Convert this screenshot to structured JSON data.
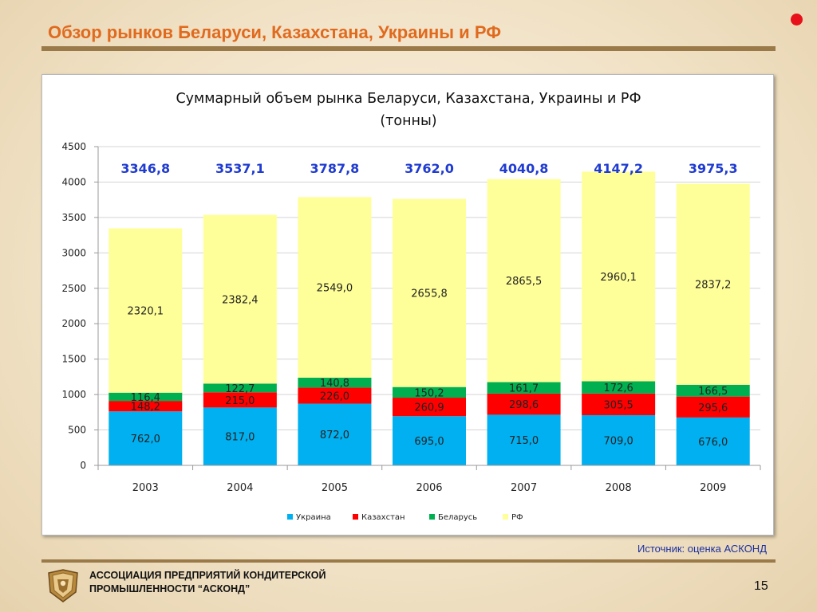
{
  "slide": {
    "title": "Обзор рынков Беларуси, Казахстана, Украины и РФ",
    "source": "Источник: оценка АСКОНД",
    "footer_line1": "АССОЦИАЦИЯ ПРЕДПРИЯТИЙ  КОНДИТЕРСКОЙ",
    "footer_line2": "ПРОМЫШЛЕННОСТИ “АСКОНД”",
    "page_number": "15"
  },
  "colors": {
    "Украина": "#00b0f0",
    "Казахстан": "#ff0000",
    "Беларусь": "#00b050",
    "РФ": "#ffff99",
    "total_label": "#1f3bd1",
    "title_accent": "#e06a1e"
  },
  "chart_data": {
    "type": "bar",
    "stacked": true,
    "title_line1": "Суммарный объем рынка Беларуси, Казахстана, Украины и РФ",
    "title_line2": "(тонны)",
    "categories": [
      "2003",
      "2004",
      "2005",
      "2006",
      "2007",
      "2008",
      "2009"
    ],
    "series": [
      {
        "name": "Украина",
        "values": [
          762.0,
          817.0,
          872.0,
          695.0,
          715.0,
          709.0,
          676.0
        ],
        "labels": [
          "762,0",
          "817,0",
          "872,0",
          "695,0",
          "715,0",
          "709,0",
          "676,0"
        ]
      },
      {
        "name": "Казахстан",
        "values": [
          148.2,
          215.0,
          226.0,
          260.9,
          298.6,
          305.5,
          295.6
        ],
        "labels": [
          "148,2",
          "215,0",
          "226,0",
          "260,9",
          "298,6",
          "305,5",
          "295,6"
        ]
      },
      {
        "name": "Беларусь",
        "values": [
          116.4,
          122.7,
          140.8,
          150.2,
          161.7,
          172.6,
          166.5
        ],
        "labels": [
          "116,4",
          "122,7",
          "140,8",
          "150,2",
          "161,7",
          "172,6",
          "166,5"
        ]
      },
      {
        "name": "РФ",
        "values": [
          2320.1,
          2382.4,
          2549.0,
          2655.8,
          2865.5,
          2960.1,
          2837.2
        ],
        "labels": [
          "2320,1",
          "2382,4",
          "2549,0",
          "2655,8",
          "2865,5",
          "2960,1",
          "2837,2"
        ]
      }
    ],
    "totals": [
      "3346,8",
      "3537,1",
      "3787,8",
      "3762,0",
      "4040,8",
      "4147,2",
      "3975,3"
    ],
    "yticks": [
      "0",
      "500",
      "1000",
      "1500",
      "2000",
      "2500",
      "3000",
      "3500",
      "4000",
      "4500"
    ],
    "ylim": [
      0,
      4500
    ],
    "grid": true,
    "legend_position": "bottom"
  }
}
